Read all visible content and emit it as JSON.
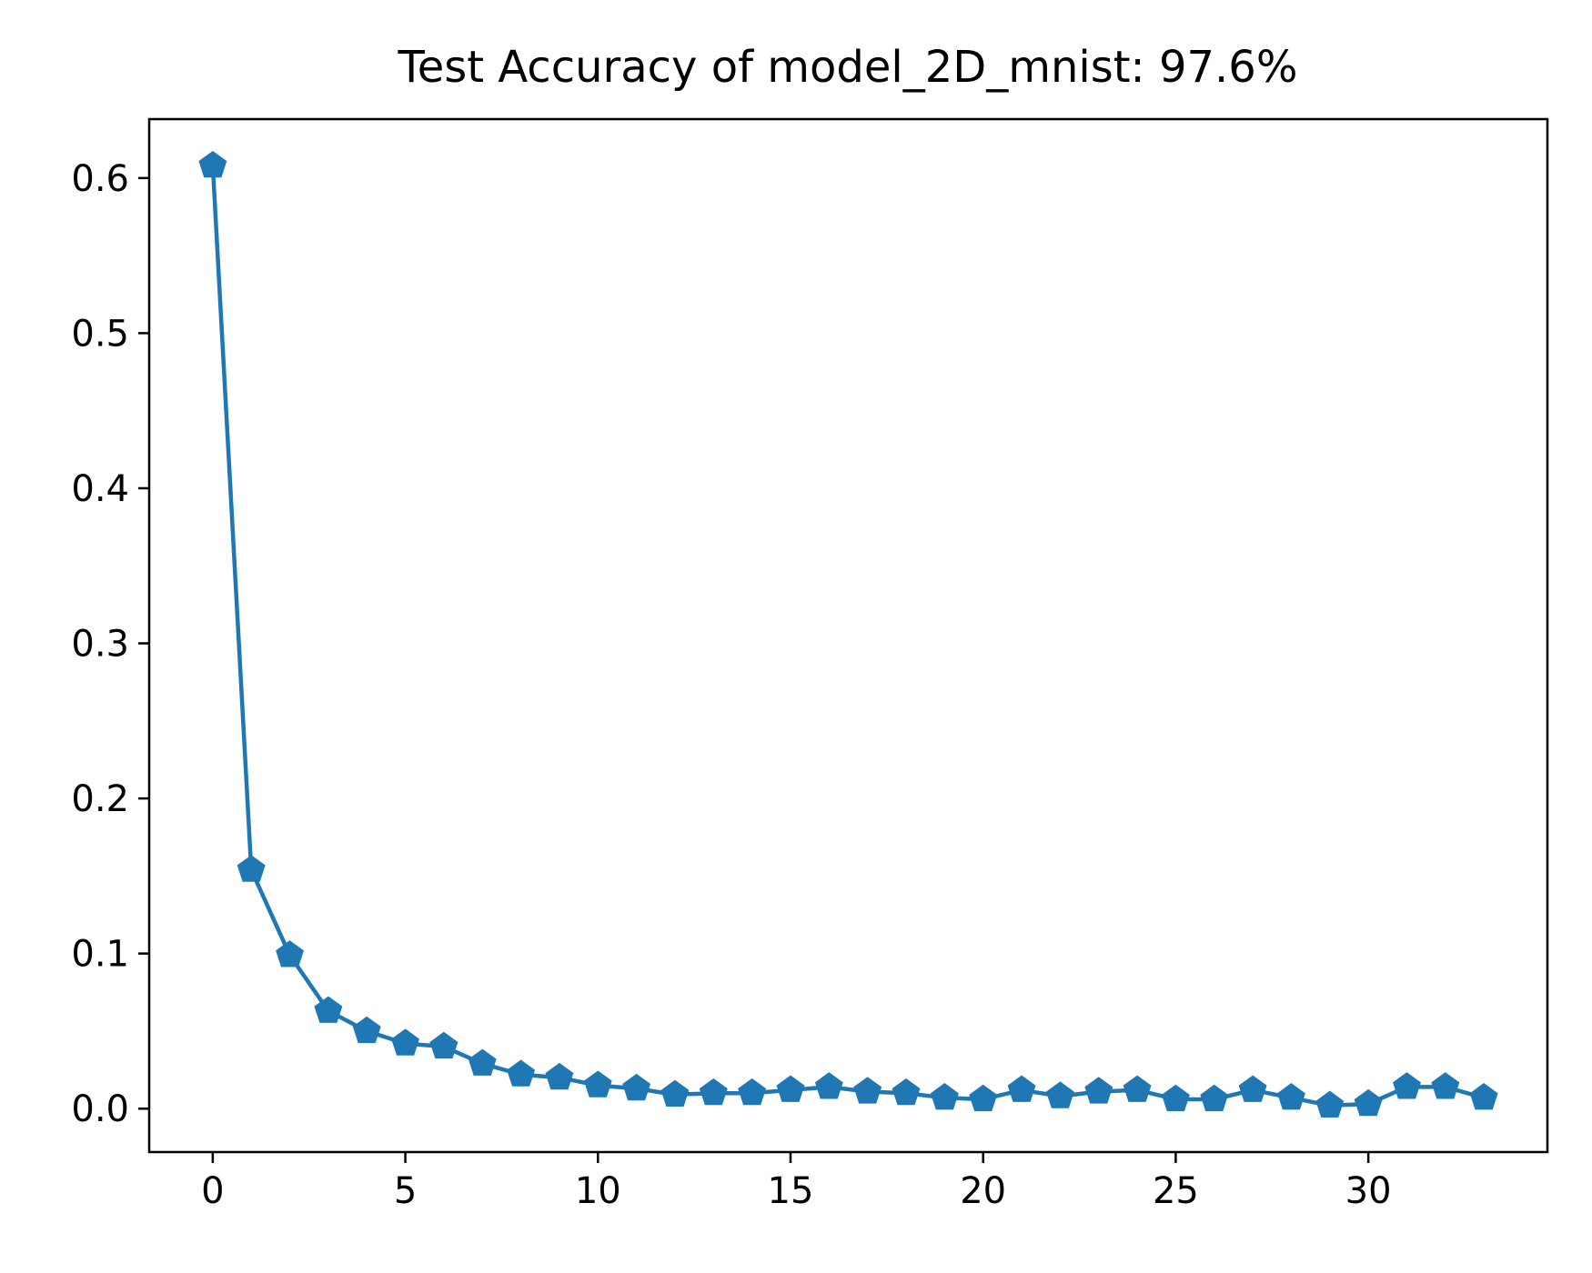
{
  "chart_data": {
    "type": "line",
    "title": "Test Accuracy of model_2D_mnist: 97.6%",
    "xlabel": "",
    "ylabel": "",
    "xlim": [
      -1.65,
      34.65
    ],
    "ylim": [
      -0.028,
      0.638
    ],
    "x_ticks": [
      0,
      5,
      10,
      15,
      20,
      25,
      30
    ],
    "x_tick_labels": [
      "0",
      "5",
      "10",
      "15",
      "20",
      "25",
      "30"
    ],
    "y_ticks": [
      0.0,
      0.1,
      0.2,
      0.3,
      0.4,
      0.5,
      0.6
    ],
    "y_tick_labels": [
      "0.0",
      "0.1",
      "0.2",
      "0.3",
      "0.4",
      "0.5",
      "0.6"
    ],
    "grid": false,
    "marker": "pentagon",
    "series": [
      {
        "color": "#1f77b4",
        "x": [
          0,
          1,
          2,
          3,
          4,
          5,
          6,
          7,
          8,
          9,
          10,
          11,
          12,
          13,
          14,
          15,
          16,
          17,
          18,
          19,
          20,
          21,
          22,
          23,
          24,
          25,
          26,
          27,
          28,
          29,
          30,
          31,
          32,
          33
        ],
        "values": [
          0.608,
          0.154,
          0.099,
          0.063,
          0.05,
          0.042,
          0.04,
          0.029,
          0.022,
          0.02,
          0.015,
          0.013,
          0.009,
          0.01,
          0.01,
          0.012,
          0.014,
          0.011,
          0.01,
          0.007,
          0.006,
          0.012,
          0.008,
          0.011,
          0.012,
          0.006,
          0.006,
          0.012,
          0.007,
          0.002,
          0.003,
          0.014,
          0.014,
          0.007
        ]
      }
    ]
  }
}
